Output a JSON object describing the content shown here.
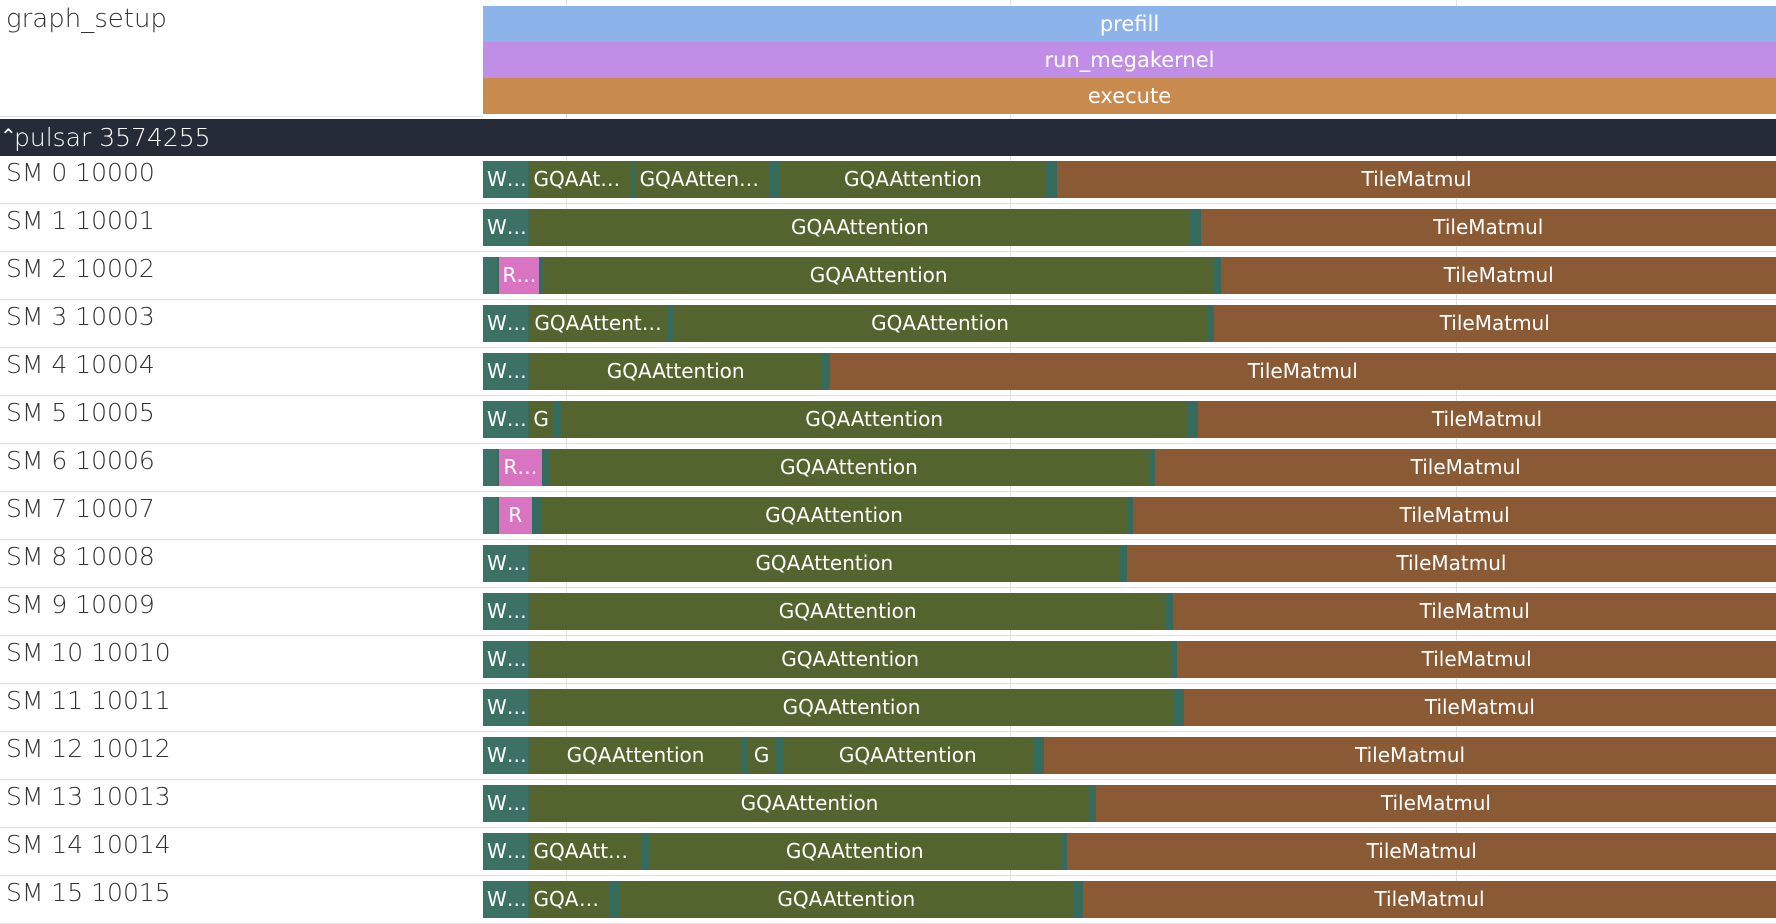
{
  "colors": {
    "prefill": "#8cb4ea",
    "run_megakernel": "#c08ee6",
    "execute": "#c98a4e",
    "W": "#3e7166",
    "R": "#d874c1",
    "GQAAttention": "#53642f",
    "TileMatmul": "#8a5a35",
    "gap": "#356b5c"
  },
  "top": {
    "track_name": "graph_setup",
    "bars": [
      {
        "label": "prefill",
        "color_key": "prefill"
      },
      {
        "label": "run_megakernel",
        "color_key": "run_megakernel"
      },
      {
        "label": "execute",
        "color_key": "execute"
      }
    ]
  },
  "process": {
    "title": "pulsar 3574255",
    "chevron": "⌃"
  },
  "rows": [
    {
      "label": "SM 0 10000",
      "slices": [
        {
          "kind": "W",
          "label": "W…",
          "s": 0,
          "e": 0.035
        },
        {
          "kind": "GQAAttention",
          "label": "GQAAtt…",
          "s": 0.036,
          "e": 0.115
        },
        {
          "kind": "GQAAttention",
          "label": "GQAAttent…",
          "s": 0.118,
          "e": 0.222
        },
        {
          "kind": "GQAAttention",
          "label": "GQAAttention",
          "s": 0.23,
          "e": 0.435
        },
        {
          "kind": "TileMatmul",
          "label": "TileMatmul",
          "s": 0.444,
          "e": 1
        }
      ]
    },
    {
      "label": "SM 1 10001",
      "slices": [
        {
          "kind": "W",
          "label": "W…",
          "s": 0,
          "e": 0.035
        },
        {
          "kind": "GQAAttention",
          "label": "GQAAttention",
          "s": 0.036,
          "e": 0.547
        },
        {
          "kind": "TileMatmul",
          "label": "TileMatmul",
          "s": 0.555,
          "e": 1
        }
      ]
    },
    {
      "label": "SM 2 10002",
      "slices": [
        {
          "kind": "W",
          "label": "",
          "s": 0,
          "e": 0.011
        },
        {
          "kind": "R",
          "label": "R…",
          "s": 0.012,
          "e": 0.043
        },
        {
          "kind": "GQAAttention",
          "label": "GQAAttention",
          "s": 0.047,
          "e": 0.565
        },
        {
          "kind": "TileMatmul",
          "label": "TileMatmul",
          "s": 0.571,
          "e": 1
        }
      ]
    },
    {
      "label": "SM 3 10003",
      "slices": [
        {
          "kind": "W",
          "label": "W…",
          "s": 0,
          "e": 0.035
        },
        {
          "kind": "GQAAttention",
          "label": "GQAAttent…",
          "s": 0.036,
          "e": 0.142
        },
        {
          "kind": "GQAAttention",
          "label": "GQAAttention",
          "s": 0.147,
          "e": 0.56
        },
        {
          "kind": "TileMatmul",
          "label": "TileMatmul",
          "s": 0.565,
          "e": 1
        }
      ]
    },
    {
      "label": "SM 4 10004",
      "slices": [
        {
          "kind": "W",
          "label": "W…",
          "s": 0,
          "e": 0.035
        },
        {
          "kind": "GQAAttention",
          "label": "GQAAttention",
          "s": 0.036,
          "e": 0.262
        },
        {
          "kind": "TileMatmul",
          "label": "TileMatmul",
          "s": 0.268,
          "e": 1
        }
      ]
    },
    {
      "label": "SM 5 10005",
      "slices": [
        {
          "kind": "W",
          "label": "W…",
          "s": 0,
          "e": 0.035
        },
        {
          "kind": "GQAAttention",
          "label": "G",
          "s": 0.036,
          "e": 0.054
        },
        {
          "kind": "GQAAttention",
          "label": "GQAAttention",
          "s": 0.06,
          "e": 0.545
        },
        {
          "kind": "TileMatmul",
          "label": "TileMatmul",
          "s": 0.553,
          "e": 1
        }
      ]
    },
    {
      "label": "SM 6 10006",
      "slices": [
        {
          "kind": "W",
          "label": "",
          "s": 0,
          "e": 0.011
        },
        {
          "kind": "R",
          "label": "R…",
          "s": 0.012,
          "e": 0.046
        },
        {
          "kind": "GQAAttention",
          "label": "GQAAttention",
          "s": 0.051,
          "e": 0.515
        },
        {
          "kind": "TileMatmul",
          "label": "TileMatmul",
          "s": 0.52,
          "e": 1
        }
      ]
    },
    {
      "label": "SM 7 10007",
      "slices": [
        {
          "kind": "W",
          "label": "",
          "s": 0,
          "e": 0.011
        },
        {
          "kind": "R",
          "label": "R",
          "s": 0.012,
          "e": 0.038
        },
        {
          "kind": "GQAAttention",
          "label": "GQAAttention",
          "s": 0.045,
          "e": 0.498
        },
        {
          "kind": "TileMatmul",
          "label": "TileMatmul",
          "s": 0.503,
          "e": 1
        }
      ]
    },
    {
      "label": "SM 8 10008",
      "slices": [
        {
          "kind": "W",
          "label": "W…",
          "s": 0,
          "e": 0.035
        },
        {
          "kind": "GQAAttention",
          "label": "GQAAttention",
          "s": 0.036,
          "e": 0.492
        },
        {
          "kind": "TileMatmul",
          "label": "TileMatmul",
          "s": 0.498,
          "e": 1
        }
      ]
    },
    {
      "label": "SM 9 10009",
      "slices": [
        {
          "kind": "W",
          "label": "W…",
          "s": 0,
          "e": 0.035
        },
        {
          "kind": "GQAAttention",
          "label": "GQAAttention",
          "s": 0.036,
          "e": 0.528
        },
        {
          "kind": "TileMatmul",
          "label": "TileMatmul",
          "s": 0.534,
          "e": 1
        }
      ]
    },
    {
      "label": "SM 10 10010",
      "slices": [
        {
          "kind": "W",
          "label": "W…",
          "s": 0,
          "e": 0.035
        },
        {
          "kind": "GQAAttention",
          "label": "GQAAttention",
          "s": 0.036,
          "e": 0.532
        },
        {
          "kind": "TileMatmul",
          "label": "TileMatmul",
          "s": 0.537,
          "e": 1
        }
      ]
    },
    {
      "label": "SM 11 10011",
      "slices": [
        {
          "kind": "W",
          "label": "W…",
          "s": 0,
          "e": 0.035
        },
        {
          "kind": "GQAAttention",
          "label": "GQAAttention",
          "s": 0.036,
          "e": 0.534
        },
        {
          "kind": "TileMatmul",
          "label": "TileMatmul",
          "s": 0.542,
          "e": 1
        }
      ]
    },
    {
      "label": "SM 12 10012",
      "slices": [
        {
          "kind": "W",
          "label": "W…",
          "s": 0,
          "e": 0.035
        },
        {
          "kind": "GQAAttention",
          "label": "GQAAttention",
          "s": 0.036,
          "e": 0.2
        },
        {
          "kind": "GQAAttention",
          "label": "G",
          "s": 0.205,
          "e": 0.226
        },
        {
          "kind": "GQAAttention",
          "label": "GQAAttention",
          "s": 0.232,
          "e": 0.425
        },
        {
          "kind": "TileMatmul",
          "label": "TileMatmul",
          "s": 0.434,
          "e": 1
        }
      ]
    },
    {
      "label": "SM 13 10013",
      "slices": [
        {
          "kind": "W",
          "label": "W…",
          "s": 0,
          "e": 0.035
        },
        {
          "kind": "GQAAttention",
          "label": "GQAAttention",
          "s": 0.036,
          "e": 0.469
        },
        {
          "kind": "TileMatmul",
          "label": "TileMatmul",
          "s": 0.474,
          "e": 1
        }
      ]
    },
    {
      "label": "SM 14 10014",
      "slices": [
        {
          "kind": "W",
          "label": "W…",
          "s": 0,
          "e": 0.035
        },
        {
          "kind": "GQAAttention",
          "label": "GQAAtte…",
          "s": 0.036,
          "e": 0.123
        },
        {
          "kind": "GQAAttention",
          "label": "GQAAttention",
          "s": 0.128,
          "e": 0.447
        },
        {
          "kind": "TileMatmul",
          "label": "TileMatmul",
          "s": 0.452,
          "e": 1
        }
      ]
    },
    {
      "label": "SM 15 10015",
      "slices": [
        {
          "kind": "W",
          "label": "W…",
          "s": 0,
          "e": 0.035
        },
        {
          "kind": "GQAAttention",
          "label": "GQAAt…",
          "s": 0.036,
          "e": 0.098
        },
        {
          "kind": "GQAAttention",
          "label": "GQAAttention",
          "s": 0.105,
          "e": 0.457
        },
        {
          "kind": "TileMatmul",
          "label": "TileMatmul",
          "s": 0.464,
          "e": 1
        }
      ]
    }
  ]
}
